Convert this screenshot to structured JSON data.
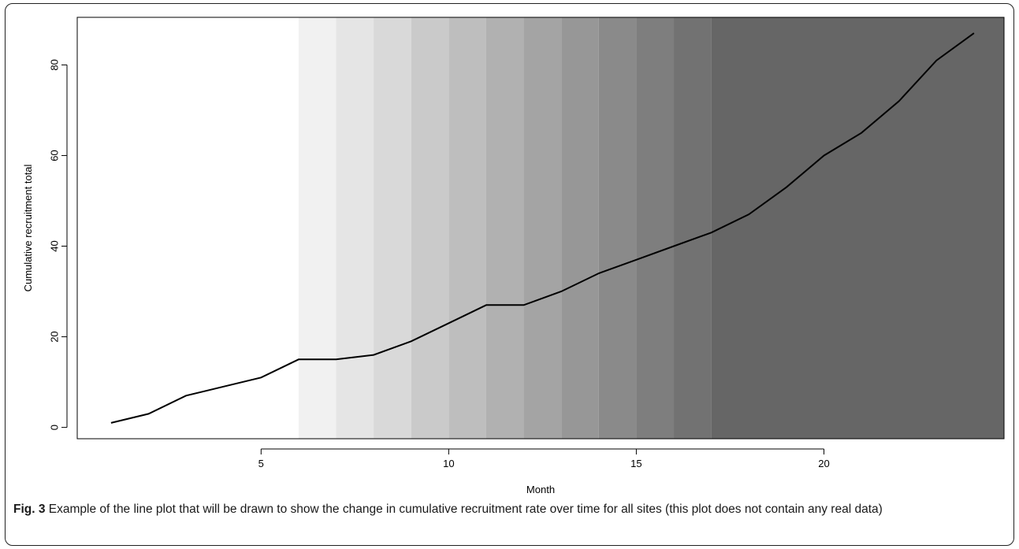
{
  "chart_data": {
    "type": "line",
    "xlabel": "Month",
    "ylabel": "Cumulative recruitment total",
    "xlim": [
      0.1,
      24.8
    ],
    "ylim": [
      -2.5,
      90.5
    ],
    "xticks": [
      5,
      10,
      15,
      20
    ],
    "yticks": [
      0,
      20,
      40,
      60,
      80
    ],
    "grid": false,
    "series": [
      {
        "x": [
          1,
          2,
          3,
          4,
          5,
          6,
          7,
          8,
          9,
          10,
          11,
          12,
          13,
          14,
          15,
          16,
          17,
          18,
          19,
          20,
          21,
          22,
          23,
          24
        ],
        "y": [
          1,
          3,
          7,
          9,
          11,
          15,
          15,
          16,
          19,
          23,
          27,
          27,
          30,
          34,
          37,
          40,
          43,
          47,
          53,
          60,
          65,
          72,
          81,
          87
        ]
      }
    ],
    "background_bands": [
      {
        "from": 6,
        "to": 7,
        "color": "#f1f1f1"
      },
      {
        "from": 7,
        "to": 8,
        "color": "#e5e5e5"
      },
      {
        "from": 8,
        "to": 9,
        "color": "#d9d9d9"
      },
      {
        "from": 9,
        "to": 10,
        "color": "#cacaca"
      },
      {
        "from": 10,
        "to": 11,
        "color": "#bebebe"
      },
      {
        "from": 11,
        "to": 12,
        "color": "#b1b1b1"
      },
      {
        "from": 12,
        "to": 13,
        "color": "#a4a4a4"
      },
      {
        "from": 13,
        "to": 14,
        "color": "#979797"
      },
      {
        "from": 14,
        "to": 15,
        "color": "#8a8a8a"
      },
      {
        "from": 15,
        "to": 16,
        "color": "#7e7e7e"
      },
      {
        "from": 16,
        "to": 17,
        "color": "#727272"
      },
      {
        "from": 17,
        "to": 24.8,
        "color": "#666666"
      }
    ],
    "line_color": "#000000"
  },
  "caption": {
    "label": "Fig. 3",
    "text": " Example of the line plot that will be drawn to show the change in cumulative recruitment rate over time for all sites (this plot does not contain any real data)"
  }
}
